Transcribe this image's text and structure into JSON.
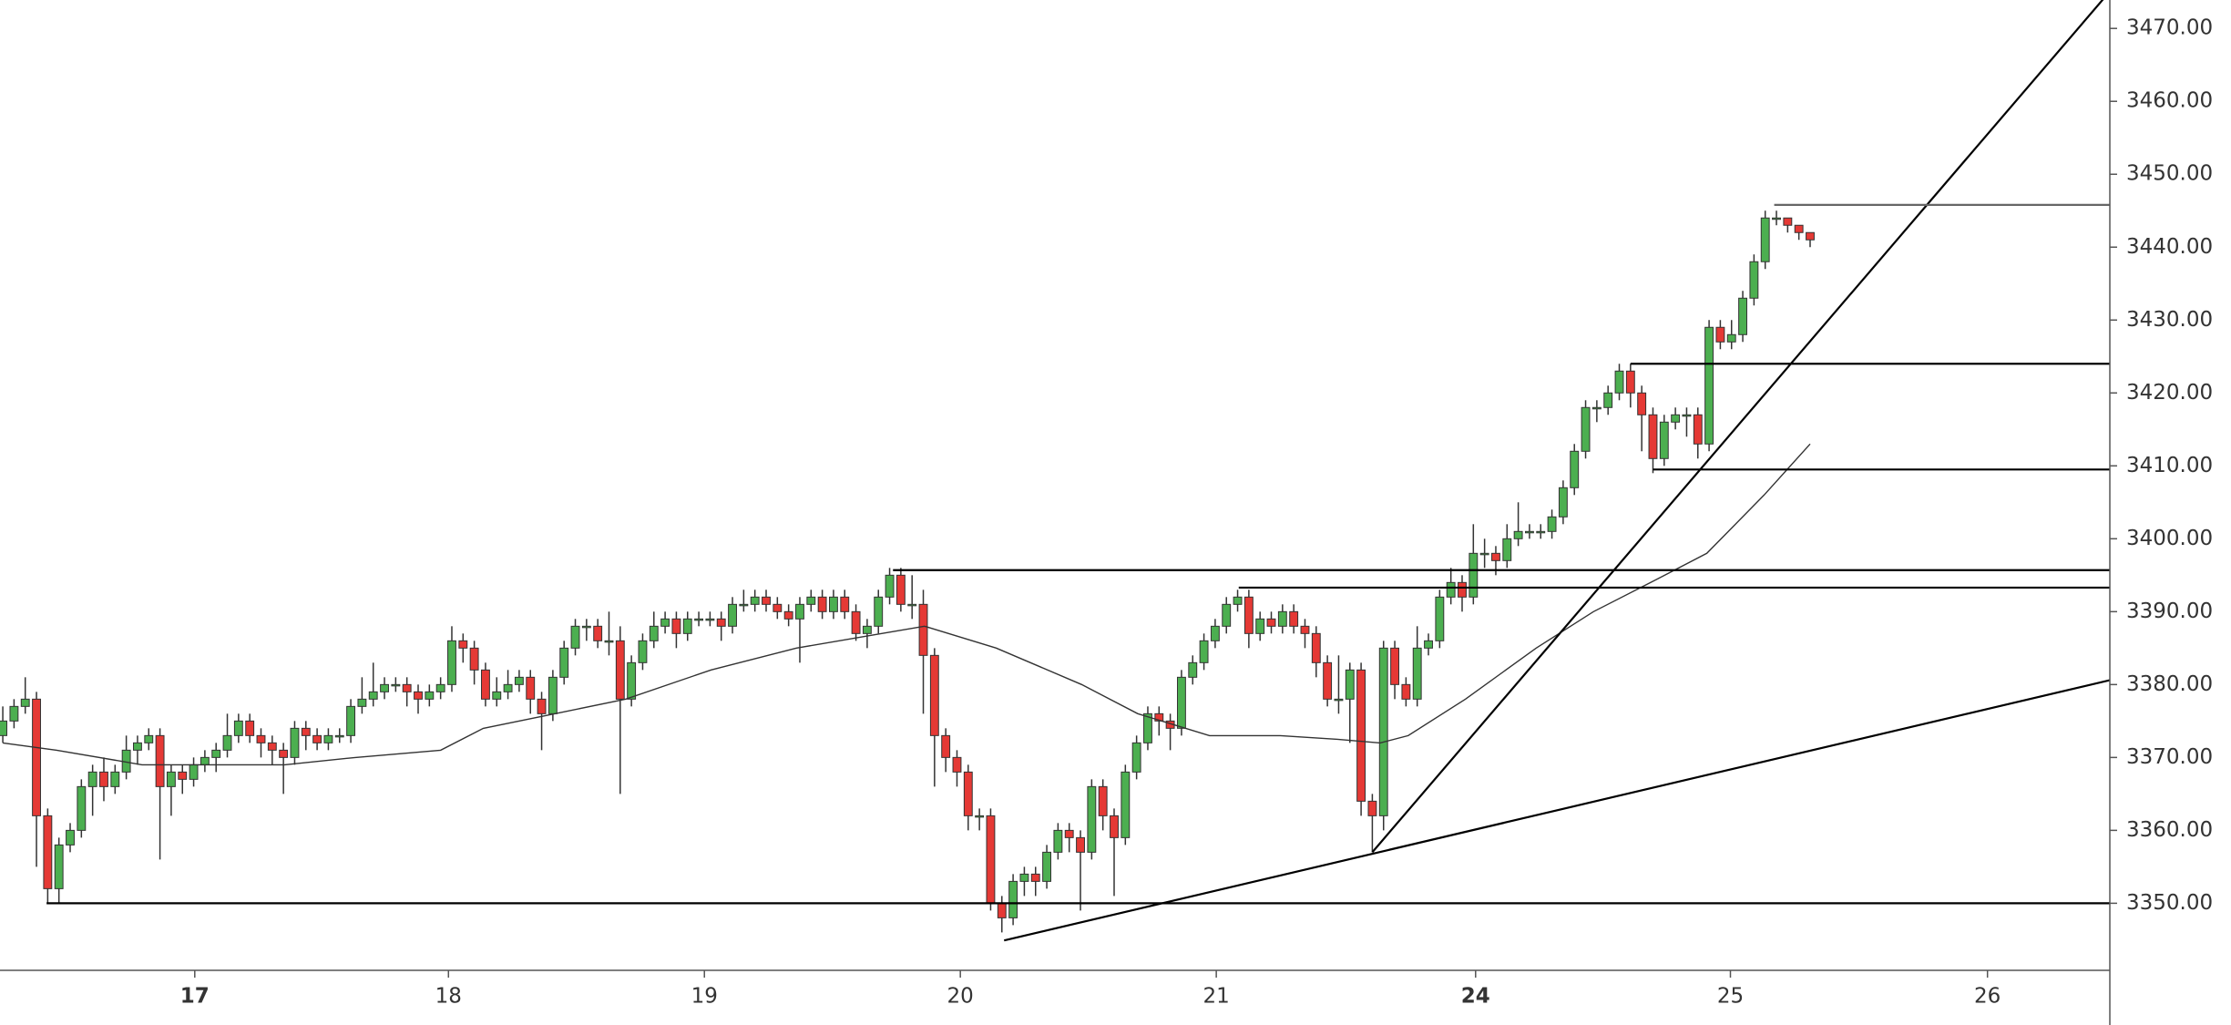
{
  "chart_data": {
    "type": "candlestick",
    "xlim": [
      -0.25,
      187.7
    ],
    "ylim": [
      3340.8,
      3473.9
    ],
    "yticks": [
      {
        "value": 3350,
        "label": "3350.00"
      },
      {
        "value": 3360,
        "label": "3360.00"
      },
      {
        "value": 3370,
        "label": "3370.00"
      },
      {
        "value": 3380,
        "label": "3380.00"
      },
      {
        "value": 3390,
        "label": "3390.00"
      },
      {
        "value": 3400,
        "label": "3400.00"
      },
      {
        "value": 3410,
        "label": "3410.00"
      },
      {
        "value": 3420,
        "label": "3420.00"
      },
      {
        "value": 3430,
        "label": "3430.00"
      },
      {
        "value": 3440,
        "label": "3440.00"
      },
      {
        "value": 3450,
        "label": "3450.00"
      },
      {
        "value": 3460,
        "label": "3460.00"
      },
      {
        "value": 3470,
        "label": "3470.00"
      }
    ],
    "xticks": [
      {
        "value": 17.1,
        "label": "17",
        "bold": true
      },
      {
        "value": 39.7,
        "label": "18"
      },
      {
        "value": 62.5,
        "label": "19"
      },
      {
        "value": 85.3,
        "label": "20"
      },
      {
        "value": 108.1,
        "label": "21"
      },
      {
        "value": 131.2,
        "label": "24",
        "bold": true
      },
      {
        "value": 153.9,
        "label": "25"
      },
      {
        "value": 176.8,
        "label": "26"
      }
    ],
    "up_color": "#4caf50",
    "down_color": "#e53935",
    "open": [
      3373,
      3375,
      3377,
      3378,
      3362,
      3352,
      3358,
      3360,
      3366,
      3368,
      3366,
      3368,
      3371,
      3372,
      3373,
      3366,
      3368,
      3367,
      3369,
      3370,
      3371,
      3373,
      3375,
      3373,
      3372,
      3371,
      3370,
      3374,
      3373,
      3372,
      3373,
      3373,
      3377,
      3378,
      3379,
      3380,
      3380,
      3379,
      3378,
      3379,
      3380,
      3386,
      3385,
      3382,
      3378,
      3379,
      3380,
      3381,
      3378,
      3376,
      3381,
      3385,
      3388,
      3388,
      3386,
      3386,
      3378,
      3383,
      3386,
      3388,
      3389,
      3387,
      3389,
      3389,
      3389,
      3388,
      3391,
      3391,
      3392,
      3391,
      3390,
      3389,
      3391,
      3392,
      3390,
      3392,
      3390,
      3387,
      3388,
      3392,
      3395,
      3391,
      3391,
      3384,
      3373,
      3370,
      3368,
      3362,
      3362,
      3350,
      3348,
      3353,
      3354,
      3353,
      3357,
      3360,
      3359,
      3357,
      3366,
      3362,
      3359,
      3368,
      3372,
      3376,
      3375,
      3374,
      3381,
      3383,
      3386,
      3388,
      3391,
      3392,
      3387,
      3389,
      3388,
      3390,
      3388,
      3387,
      3383,
      3378,
      3378,
      3382,
      3364,
      3362,
      3385,
      3380,
      3378,
      3385,
      3386,
      3392,
      3394,
      3392,
      3398,
      3398,
      3397,
      3400,
      3401,
      3401,
      3401,
      3403,
      3407,
      3412,
      3418,
      3418,
      3420,
      3423,
      3420,
      3417,
      3411,
      3416,
      3417,
      3417,
      3413,
      3429,
      3427,
      3428,
      3433,
      3438,
      3444,
      3444,
      3443,
      3442
    ],
    "high": [
      3377,
      3378,
      3381,
      3379,
      3363,
      3359,
      3361,
      3367,
      3369,
      3370,
      3369,
      3373,
      3373,
      3374,
      3374,
      3369,
      3369,
      3370,
      3371,
      3372,
      3376,
      3376,
      3376,
      3374,
      3373,
      3372,
      3375,
      3375,
      3374,
      3374,
      3374,
      3378,
      3381,
      3383,
      3381,
      3381,
      3381,
      3380,
      3380,
      3381,
      3388,
      3387,
      3386,
      3383,
      3381,
      3382,
      3382,
      3382,
      3379,
      3382,
      3386,
      3389,
      3389,
      3389,
      3390,
      3388,
      3384,
      3387,
      3390,
      3390,
      3390,
      3390,
      3390,
      3390,
      3390,
      3392,
      3393,
      3393,
      3393,
      3392,
      3391,
      3392,
      3393,
      3393,
      3393,
      3393,
      3391,
      3389,
      3393,
      3396,
      3396,
      3395,
      3393,
      3385,
      3374,
      3371,
      3369,
      3363,
      3363,
      3351,
      3354,
      3355,
      3355,
      3358,
      3361,
      3361,
      3360,
      3367,
      3367,
      3363,
      3369,
      3373,
      3377,
      3377,
      3376,
      3382,
      3384,
      3387,
      3389,
      3392,
      3393,
      3393,
      3390,
      3390,
      3391,
      3391,
      3389,
      3388,
      3384,
      3384,
      3383,
      3383,
      3365,
      3386,
      3386,
      3381,
      3388,
      3387,
      3393,
      3396,
      3395,
      3402,
      3400,
      3399,
      3402,
      3405,
      3402,
      3402,
      3404,
      3408,
      3413,
      3419,
      3419,
      3421,
      3424,
      3424,
      3421,
      3418,
      3417,
      3418,
      3418,
      3418,
      3430,
      3430,
      3430,
      3434,
      3439,
      3445,
      3445,
      3444,
      3443,
      3442
    ],
    "low": [
      3372,
      3374,
      3376,
      3355,
      3350,
      3350,
      3357,
      3359,
      3362,
      3364,
      3365,
      3367,
      3369,
      3371,
      3356,
      3362,
      3365,
      3366,
      3368,
      3368,
      3370,
      3372,
      3372,
      3370,
      3369,
      3365,
      3369,
      3371,
      3371,
      3371,
      3372,
      3372,
      3376,
      3377,
      3378,
      3379,
      3377,
      3376,
      3377,
      3378,
      3379,
      3383,
      3380,
      3377,
      3377,
      3378,
      3379,
      3376,
      3371,
      3375,
      3380,
      3384,
      3386,
      3385,
      3384,
      3365,
      3377,
      3382,
      3385,
      3387,
      3385,
      3386,
      3388,
      3388,
      3386,
      3387,
      3390,
      3390,
      3390,
      3389,
      3388,
      3383,
      3390,
      3389,
      3389,
      3389,
      3386,
      3385,
      3387,
      3391,
      3390,
      3389,
      3376,
      3366,
      3368,
      3366,
      3360,
      3360,
      3349,
      3346,
      3347,
      3351,
      3351,
      3352,
      3356,
      3357,
      3349,
      3356,
      3360,
      3351,
      3358,
      3367,
      3371,
      3373,
      3371,
      3373,
      3380,
      3382,
      3385,
      3387,
      3390,
      3385,
      3386,
      3387,
      3387,
      3387,
      3385,
      3381,
      3377,
      3376,
      3372,
      3362,
      3357,
      3360,
      3378,
      3377,
      3377,
      3384,
      3385,
      3391,
      3390,
      3391,
      3396,
      3395,
      3396,
      3399,
      3400,
      3400,
      3400,
      3402,
      3406,
      3411,
      3416,
      3417,
      3419,
      3418,
      3412,
      3409,
      3410,
      3415,
      3414,
      3411,
      3412,
      3426,
      3426,
      3427,
      3432,
      3437,
      3443,
      3442,
      3441,
      3440
    ],
    "close": [
      3375,
      3377,
      3378,
      3362,
      3352,
      3358,
      3360,
      3366,
      3368,
      3366,
      3368,
      3371,
      3372,
      3373,
      3366,
      3368,
      3367,
      3369,
      3370,
      3371,
      3373,
      3375,
      3373,
      3372,
      3371,
      3370,
      3374,
      3373,
      3372,
      3373,
      3373,
      3377,
      3378,
      3379,
      3380,
      3380,
      3379,
      3378,
      3379,
      3380,
      3386,
      3385,
      3382,
      3378,
      3379,
      3380,
      3381,
      3378,
      3376,
      3381,
      3385,
      3388,
      3388,
      3386,
      3386,
      3378,
      3383,
      3386,
      3388,
      3389,
      3387,
      3389,
      3389,
      3389,
      3388,
      3391,
      3391,
      3392,
      3391,
      3390,
      3389,
      3391,
      3392,
      3390,
      3392,
      3390,
      3387,
      3388,
      3392,
      3395,
      3391,
      3391,
      3384,
      3373,
      3370,
      3368,
      3362,
      3362,
      3350,
      3348,
      3353,
      3354,
      3353,
      3357,
      3360,
      3359,
      3357,
      3366,
      3362,
      3359,
      3368,
      3372,
      3376,
      3375,
      3374,
      3381,
      3383,
      3386,
      3388,
      3391,
      3392,
      3387,
      3389,
      3388,
      3390,
      3388,
      3387,
      3383,
      3378,
      3378,
      3382,
      3364,
      3362,
      3385,
      3380,
      3378,
      3385,
      3386,
      3392,
      3394,
      3392,
      3398,
      3398,
      3397,
      3400,
      3401,
      3401,
      3401,
      3403,
      3407,
      3412,
      3418,
      3418,
      3420,
      3423,
      3420,
      3417,
      3411,
      3416,
      3417,
      3417,
      3413,
      3429,
      3427,
      3428,
      3433,
      3438,
      3444,
      3444,
      3443,
      3442,
      3441
    ],
    "ma": {
      "color": "#333333",
      "x": [
        0,
        4.8,
        12.4,
        18.8,
        25.1,
        31.4,
        39,
        42.8,
        49.2,
        55.5,
        63.1,
        70.7,
        78.3,
        82.1,
        88.5,
        96.1,
        101.1,
        107.5,
        113.8,
        118.9,
        122.7,
        125.2,
        130.3,
        136.6,
        141.7,
        146.8,
        151.8,
        156.9,
        161
      ],
      "values": [
        3372,
        3371,
        3369,
        3369,
        3369,
        3370,
        3371,
        3374,
        3376,
        3378,
        3382,
        3385,
        3387,
        3388,
        3385,
        3380,
        3376,
        3373,
        3373,
        3372.5,
        3372,
        3373,
        3378,
        3385,
        3390,
        3394,
        3398,
        3406,
        3413
      ]
    },
    "drawings": [
      {
        "x": [
          3.9,
          187.7
        ],
        "y": [
          3350,
          3350
        ],
        "color": "#000000"
      },
      {
        "x": [
          89.2,
          187.7
        ],
        "y": [
          3344.9,
          3380.6
        ],
        "color": "#000000"
      },
      {
        "x": [
          122,
          187.1
        ],
        "y": [
          3357,
          3474
        ],
        "color": "#000000"
      },
      {
        "x": [
          79.3,
          187.7
        ],
        "y": [
          3395.7,
          3395.7
        ],
        "color": "#000000"
      },
      {
        "x": [
          110.1,
          187.7
        ],
        "y": [
          3393.3,
          3393.3
        ],
        "color": "#000000"
      },
      {
        "x": [
          145,
          187.7
        ],
        "y": [
          3424,
          3424
        ],
        "color": "#000000"
      },
      {
        "x": [
          147,
          187.7
        ],
        "y": [
          3409.5,
          3409.5
        ],
        "color": "#000000"
      },
      {
        "x": [
          157.8,
          187.7
        ],
        "y": [
          3445.8,
          3445.8
        ],
        "color": "#666666"
      }
    ]
  }
}
